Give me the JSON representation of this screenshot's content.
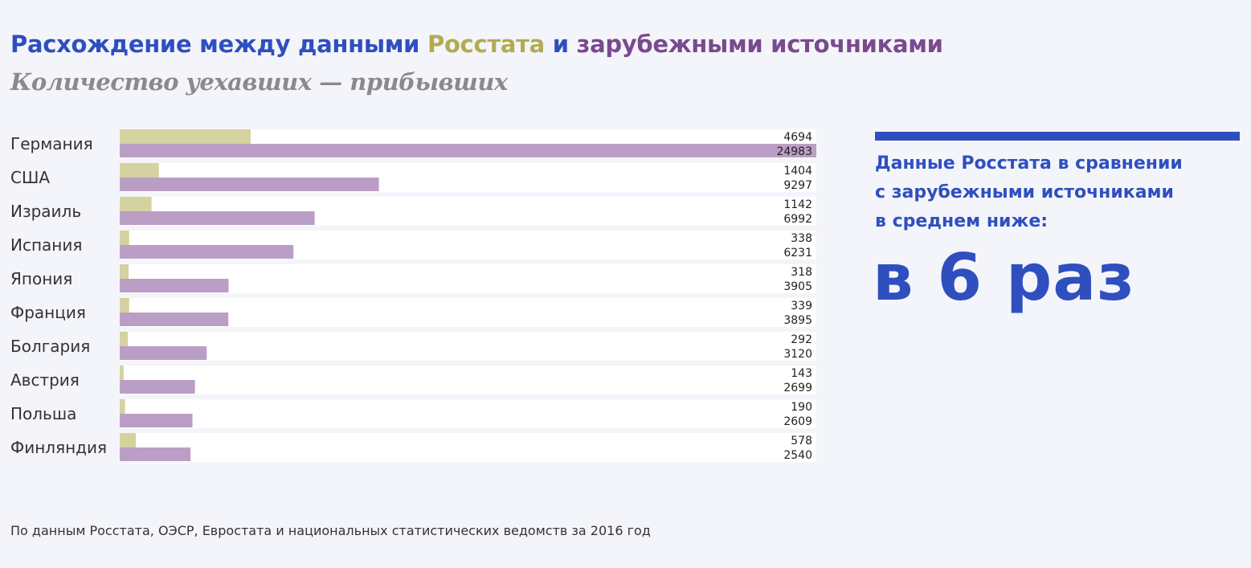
{
  "colors": {
    "title_blue": "#2f4fbf",
    "rosstat": "#b2ab52",
    "foreign": "#7a4a8e",
    "subtitle_gray": "#8a8a8a",
    "bar_rosstat": "#d4d29f",
    "bar_foreign": "#bb9ec5",
    "row_band": "#ffffff",
    "panel_blue": "#2f4fbf",
    "label_text": "#333333"
  },
  "title": {
    "part1": "Расхождение между данными ",
    "part2": "Росстата",
    "part3": " и ",
    "part4": "зарубежными источниками"
  },
  "subtitle": "Количество уехавших — прибывших",
  "chart_data": {
    "type": "bar",
    "orientation": "horizontal",
    "title": "Расхождение между данными Росстата и зарубежными источниками",
    "subtitle": "Количество уехавших — прибывших",
    "categories": [
      "Германия",
      "США",
      "Израиль",
      "Испания",
      "Япония",
      "Франция",
      "Болгария",
      "Австрия",
      "Польша",
      "Финляндия"
    ],
    "series": [
      {
        "values": [
          4694,
          1404,
          1142,
          338,
          318,
          339,
          292,
          143,
          190,
          578
        ]
      },
      {
        "values": [
          24983,
          9297,
          6992,
          6231,
          3905,
          3895,
          3120,
          2699,
          2609,
          2540
        ]
      }
    ],
    "xlim": [
      0,
      24983
    ],
    "grid": false,
    "legend": "none"
  },
  "panel": {
    "line1": "Данные Росстата в сравнении",
    "line2": "с зарубежными источниками",
    "line3": "в среднем ниже:",
    "big": "в 6 раз"
  },
  "footnote": "По данным Росстата, ОЭСР, Евростата и национальных статистических ведомств за 2016 год"
}
